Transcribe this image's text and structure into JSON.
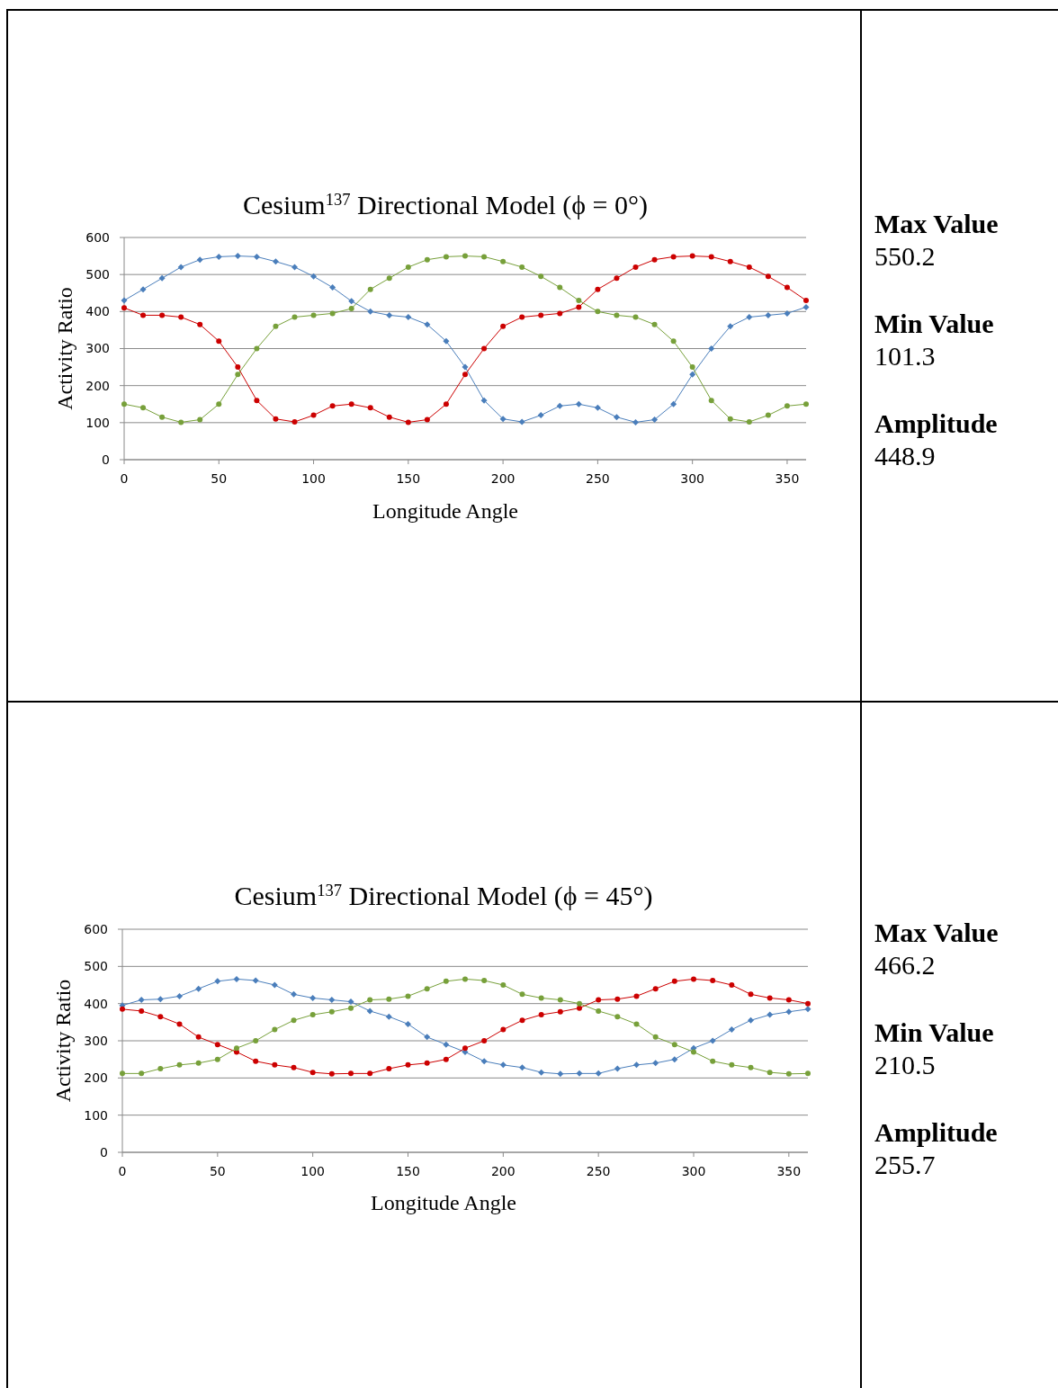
{
  "chart_data": [
    {
      "type": "line",
      "title": "Cesium$^{137}$ Directional Model (ϕ = 0°)",
      "xlabel": "Longitude Angle",
      "ylabel": "Activity Ratio",
      "xlim": [
        0,
        360
      ],
      "ylim": [
        0,
        600
      ],
      "xticks": [
        0,
        50,
        100,
        150,
        200,
        250,
        300,
        350
      ],
      "yticks": [
        0,
        100,
        200,
        300,
        400,
        500,
        600
      ],
      "grid": "y",
      "x": [
        0,
        10,
        20,
        30,
        40,
        50,
        60,
        70,
        80,
        90,
        100,
        110,
        120,
        130,
        140,
        150,
        160,
        170,
        180,
        190,
        200,
        210,
        220,
        230,
        240,
        250,
        260,
        270,
        280,
        290,
        300,
        310,
        320,
        330,
        340,
        350,
        360
      ],
      "series": [
        {
          "color": "#4a7ebb",
          "marker": "diamond",
          "values": [
            430,
            460,
            490,
            520,
            540,
            548,
            550,
            548,
            535,
            520,
            495,
            465,
            428,
            400,
            390,
            385,
            365,
            320,
            250,
            160,
            110,
            102,
            120,
            145,
            150,
            140,
            115,
            101,
            108,
            150,
            230,
            300,
            360,
            385,
            390,
            395,
            412
          ]
        },
        {
          "color": "#cc0000",
          "marker": "circle",
          "values": [
            410,
            390,
            390,
            385,
            365,
            320,
            250,
            160,
            110,
            102,
            120,
            145,
            150,
            140,
            115,
            101,
            108,
            150,
            230,
            300,
            360,
            385,
            390,
            395,
            412,
            460,
            490,
            520,
            540,
            548,
            550,
            548,
            535,
            520,
            495,
            465,
            430
          ]
        },
        {
          "color": "#77a03a",
          "marker": "circle",
          "values": [
            150,
            140,
            115,
            101,
            108,
            150,
            230,
            300,
            360,
            385,
            390,
            395,
            408,
            460,
            490,
            520,
            540,
            548,
            550,
            548,
            535,
            520,
            495,
            465,
            430,
            400,
            390,
            385,
            365,
            320,
            250,
            160,
            110,
            102,
            120,
            145,
            150
          ]
        }
      ]
    },
    {
      "type": "other",
      "annotations": [
        "Max Value",
        "550.2",
        "Min Value",
        "101.3",
        "Amplitude",
        "448.9"
      ]
    },
    {
      "type": "line",
      "title": "Cesium$^{137}$ Directional Model (ϕ = 45°)",
      "xlabel": "Longitude Angle",
      "ylabel": "Activity Ratio",
      "xlim": [
        0,
        360
      ],
      "ylim": [
        0,
        600
      ],
      "xticks": [
        0,
        50,
        100,
        150,
        200,
        250,
        300,
        350
      ],
      "yticks": [
        0,
        100,
        200,
        300,
        400,
        500,
        600
      ],
      "grid": "y",
      "x": [
        0,
        10,
        20,
        30,
        40,
        50,
        60,
        70,
        80,
        90,
        100,
        110,
        120,
        130,
        140,
        150,
        160,
        170,
        180,
        190,
        200,
        210,
        220,
        230,
        240,
        250,
        260,
        270,
        280,
        290,
        300,
        310,
        320,
        330,
        340,
        350,
        360
      ],
      "series": [
        {
          "color": "#4a7ebb",
          "marker": "diamond",
          "values": [
            395,
            410,
            412,
            420,
            440,
            460,
            466,
            462,
            450,
            425,
            415,
            410,
            405,
            380,
            365,
            345,
            310,
            290,
            270,
            245,
            235,
            228,
            215,
            211,
            212,
            212,
            225,
            235,
            240,
            250,
            280,
            300,
            330,
            355,
            370,
            378,
            385
          ]
        },
        {
          "color": "#cc0000",
          "marker": "circle",
          "values": [
            385,
            380,
            365,
            345,
            310,
            290,
            270,
            245,
            235,
            228,
            215,
            211,
            212,
            212,
            225,
            235,
            240,
            250,
            280,
            300,
            330,
            355,
            370,
            378,
            388,
            410,
            412,
            420,
            440,
            460,
            466,
            462,
            450,
            425,
            415,
            410,
            400
          ]
        },
        {
          "color": "#77a03a",
          "marker": "circle",
          "values": [
            212,
            212,
            225,
            235,
            240,
            250,
            280,
            300,
            330,
            355,
            370,
            378,
            388,
            410,
            412,
            420,
            440,
            460,
            466,
            462,
            450,
            425,
            415,
            410,
            400,
            380,
            365,
            345,
            310,
            290,
            270,
            245,
            235,
            228,
            215,
            211,
            212
          ]
        }
      ]
    },
    {
      "type": "other",
      "annotations": [
        "Max Value",
        "466.2",
        "Min Value",
        "210.5",
        "Amplitude",
        "255.7"
      ]
    }
  ]
}
